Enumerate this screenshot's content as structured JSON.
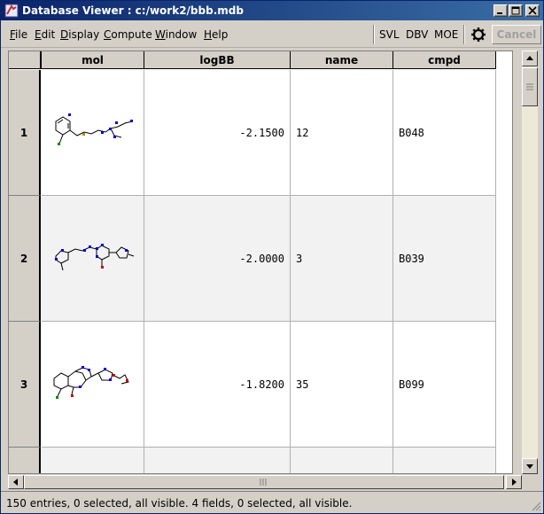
{
  "window": {
    "title": "Database Viewer : c:/work2/bbb.mdb"
  },
  "menu": {
    "items": [
      {
        "label": "File"
      },
      {
        "label": "Edit"
      },
      {
        "label": "Display"
      },
      {
        "label": "Compute"
      },
      {
        "label": "Window"
      },
      {
        "label": "Help"
      }
    ],
    "tools": [
      "SVL",
      "DBV",
      "MOE"
    ],
    "settings_icon": "gear-icon",
    "cancel_label": "Cancel"
  },
  "table": {
    "columns": [
      "mol",
      "logBB",
      "name",
      "cmpd"
    ],
    "rows": [
      {
        "index": "1",
        "logBB": "-2.1500",
        "name": "12",
        "cmpd": "B048"
      },
      {
        "index": "2",
        "logBB": "-2.0000",
        "name": "3",
        "cmpd": "B039"
      },
      {
        "index": "3",
        "logBB": "-1.8200",
        "name": "35",
        "cmpd": "B099"
      }
    ]
  },
  "status": {
    "text": "150 entries, 0 selected, all visible. 4 fields, 0 selected, all visible."
  },
  "colors": {
    "title_bar_start": "#0a246a",
    "title_bar_end": "#3a6ea5",
    "atom_nitrogen": "#0000cc",
    "atom_oxygen": "#cc0000",
    "atom_chlorine": "#008800",
    "atom_sulfur": "#aa8800"
  }
}
